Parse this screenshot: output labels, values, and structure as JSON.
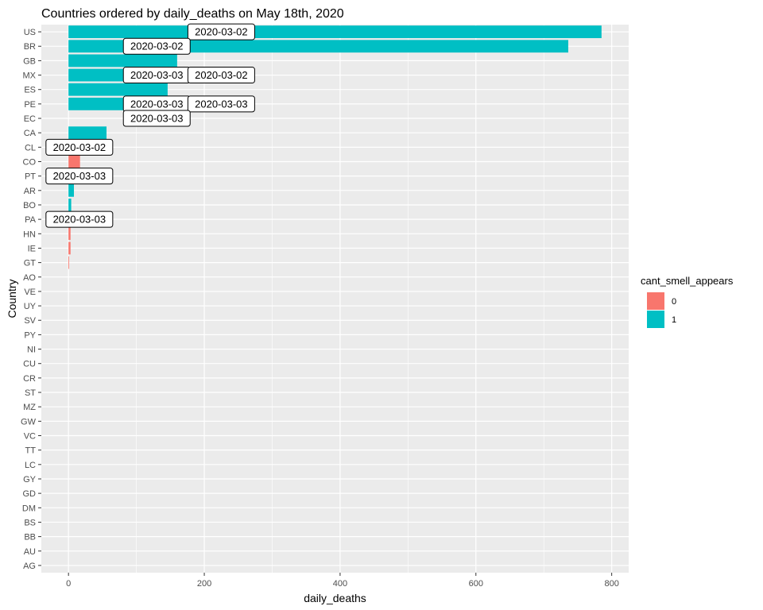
{
  "chart_data": {
    "type": "bar",
    "orientation": "horizontal",
    "title": "Countries ordered by daily_deaths on May 18th, 2020",
    "xlabel": "daily_deaths",
    "ylabel": "Country",
    "xlim": [
      -40,
      825
    ],
    "xticks": [
      0,
      200,
      400,
      600,
      800
    ],
    "grid": true,
    "background": "#ebebeb",
    "categories": [
      "US",
      "BR",
      "GB",
      "MX",
      "ES",
      "PE",
      "EC",
      "CA",
      "CL",
      "CO",
      "PT",
      "AR",
      "BO",
      "PA",
      "HN",
      "IE",
      "GT",
      "AO",
      "VE",
      "UY",
      "SV",
      "PY",
      "NI",
      "CU",
      "CR",
      "ST",
      "MZ",
      "GW",
      "VC",
      "TT",
      "LC",
      "GY",
      "GD",
      "DM",
      "BS",
      "BB",
      "AU",
      "AG"
    ],
    "values": [
      785,
      736,
      160,
      154,
      146,
      141,
      0,
      56,
      0,
      17,
      0,
      8,
      4,
      0,
      3,
      3,
      1,
      0,
      0,
      0,
      0,
      0,
      0,
      0,
      0,
      0,
      0,
      0,
      0,
      0,
      0,
      0,
      0,
      0,
      0,
      0,
      0,
      0
    ],
    "cant_smell_appears": [
      1,
      1,
      1,
      1,
      1,
      1,
      1,
      1,
      0,
      0,
      0,
      1,
      1,
      0,
      0,
      0,
      0,
      0,
      0,
      0,
      0,
      0,
      0,
      0,
      0,
      0,
      0,
      0,
      0,
      0,
      0,
      0,
      0,
      0,
      0,
      0,
      0,
      0
    ],
    "legend": {
      "title": "cant_smell_appears",
      "placement": "right",
      "entries": [
        {
          "label": "0",
          "color": "#f8766d"
        },
        {
          "label": "1",
          "color": "#00bfc4"
        }
      ]
    },
    "annotations": [
      {
        "category": "US",
        "x": 225,
        "text": "2020-03-02"
      },
      {
        "category": "BR",
        "x": 130,
        "text": "2020-03-02"
      },
      {
        "category": "MX",
        "x": 130,
        "text": "2020-03-03"
      },
      {
        "category": "MX",
        "x": 225,
        "text": "2020-03-02"
      },
      {
        "category": "PE",
        "x": 130,
        "text": "2020-03-03"
      },
      {
        "category": "PE",
        "x": 225,
        "text": "2020-03-03"
      },
      {
        "category": "EC",
        "x": 130,
        "text": "2020-03-03"
      },
      {
        "category": "CL",
        "x": 16,
        "text": "2020-03-02"
      },
      {
        "category": "PT",
        "x": 16,
        "text": "2020-03-03"
      },
      {
        "category": "PA",
        "x": 16,
        "text": "2020-03-03"
      }
    ]
  }
}
